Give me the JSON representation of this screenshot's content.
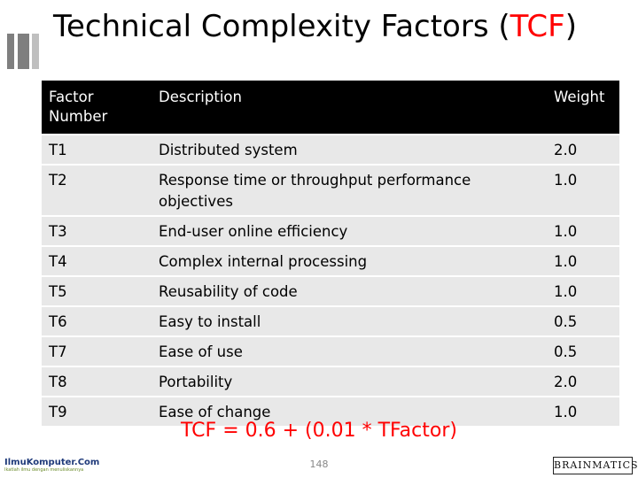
{
  "slide": {
    "title_main": "Technical Complexity Factors ",
    "title_paren_open": "(",
    "title_accent": "TCF",
    "title_paren_close": ")",
    "formula": "TCF = 0.6 + (0.01 * TFactor)",
    "page_number": "148",
    "logo_left_main": "IlmuKomputer.Com",
    "logo_left_tagline": "Ikatlah ilmu dengan menuliskannya",
    "logo_right": "BRAINMATICS"
  },
  "table": {
    "headers": [
      "Factor Number",
      "Description",
      "Weight"
    ],
    "rows": [
      [
        "T1",
        "Distributed system",
        "2.0"
      ],
      [
        "T2",
        "Response time or throughput performance objectives",
        "1.0"
      ],
      [
        "T3",
        "End-user online efficiency",
        "1.0"
      ],
      [
        "T4",
        "Complex internal processing",
        "1.0"
      ],
      [
        "T5",
        "Reusability of code",
        "1.0"
      ],
      [
        "T6",
        "Easy to install",
        "0.5"
      ],
      [
        "T7",
        "Ease of use",
        "0.5"
      ],
      [
        "T8",
        "Portability",
        "2.0"
      ],
      [
        "T9",
        "Ease of change",
        "1.0"
      ]
    ]
  },
  "colors": {
    "accent": "#ff0000",
    "header_bg": "#000000",
    "row_bg": "#e8e8e8"
  }
}
